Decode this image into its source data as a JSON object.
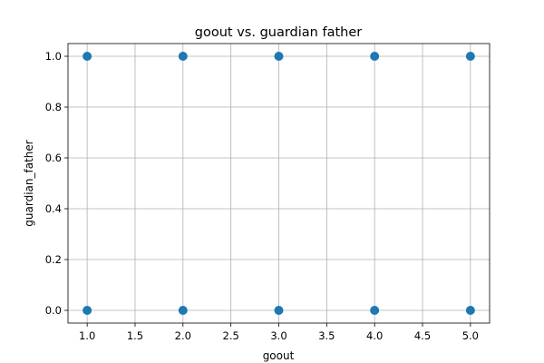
{
  "chart_data": {
    "type": "scatter",
    "title": "goout vs. guardian father",
    "xlabel": "goout",
    "ylabel": "guardian_father",
    "xlim": [
      0.8,
      5.2
    ],
    "ylim": [
      -0.05,
      1.05
    ],
    "xticks": [
      1.0,
      1.5,
      2.0,
      2.5,
      3.0,
      3.5,
      4.0,
      4.5,
      5.0
    ],
    "xtick_labels": [
      "1.0",
      "1.5",
      "2.0",
      "2.5",
      "3.0",
      "3.5",
      "4.0",
      "4.5",
      "5.0"
    ],
    "yticks": [
      0.0,
      0.2,
      0.4,
      0.6,
      0.8,
      1.0
    ],
    "ytick_labels": [
      "0.0",
      "0.2",
      "0.4",
      "0.6",
      "0.8",
      "1.0"
    ],
    "grid": true,
    "color": "#1f77b4",
    "points": [
      {
        "x": 1,
        "y": 1
      },
      {
        "x": 2,
        "y": 1
      },
      {
        "x": 3,
        "y": 1
      },
      {
        "x": 4,
        "y": 1
      },
      {
        "x": 5,
        "y": 1
      },
      {
        "x": 1,
        "y": 0
      },
      {
        "x": 2,
        "y": 0
      },
      {
        "x": 3,
        "y": 0
      },
      {
        "x": 4,
        "y": 0
      },
      {
        "x": 5,
        "y": 0
      }
    ]
  }
}
